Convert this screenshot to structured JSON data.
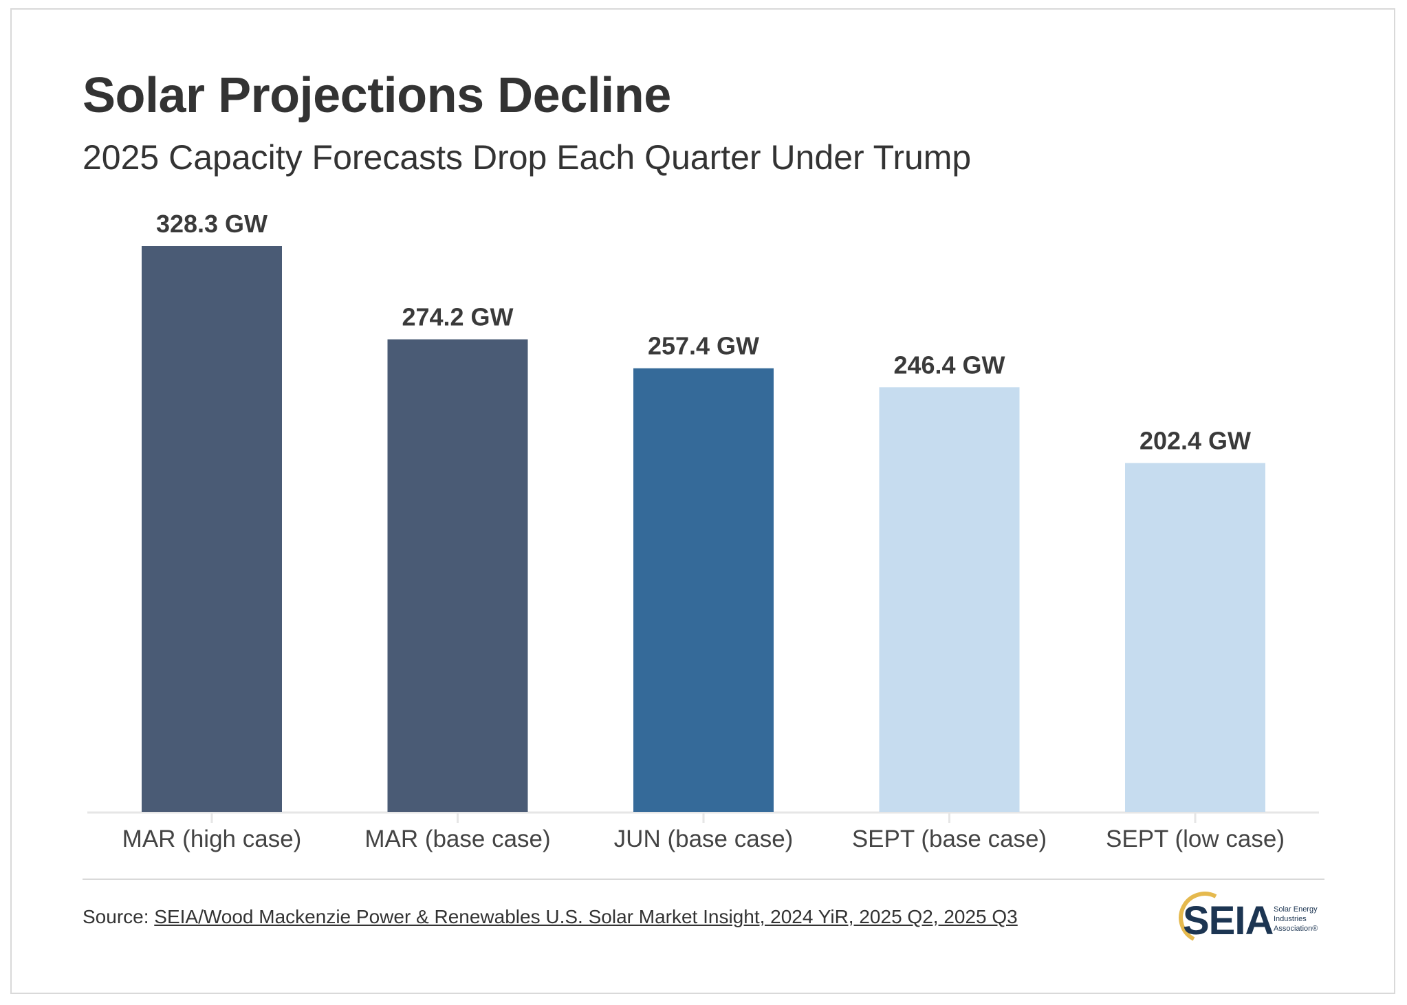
{
  "title": "Solar Projections Decline",
  "subtitle": "2025 Capacity Forecasts Drop Each Quarter Under Trump",
  "source": {
    "prefix": "Source: ",
    "link_text": "SEIA/Wood Mackenzie Power & Renewables U.S. Solar Market Insight, 2024 YiR, 2025 Q2, 2025 Q3"
  },
  "logo": {
    "main": "SEIA",
    "small_line1": "Solar Energy",
    "small_line2": "Industries",
    "small_line3": "Association®"
  },
  "chart_data": {
    "type": "bar",
    "title": "Solar Projections Decline",
    "subtitle": "2025 Capacity Forecasts Drop Each Quarter Under Trump",
    "categories": [
      "MAR (high case)",
      "MAR (base case)",
      "JUN (base case)",
      "SEPT (base case)",
      "SEPT (low case)"
    ],
    "values": [
      328.3,
      274.2,
      257.4,
      246.4,
      202.4
    ],
    "data_labels": [
      "328.3 GW",
      "274.2 GW",
      "257.4 GW",
      "246.4 GW",
      "202.4 GW"
    ],
    "unit": "GW",
    "bar_colors": [
      "#4a5b75",
      "#4a5b75",
      "#356a99",
      "#c6dcef",
      "#c6dcef"
    ],
    "label_color": "#3a3a3a",
    "axis_color": "#e6e6e6",
    "xlabel": "",
    "ylabel": "",
    "ylim": [
      0,
      328.3
    ],
    "grid": false,
    "legend": "none"
  }
}
